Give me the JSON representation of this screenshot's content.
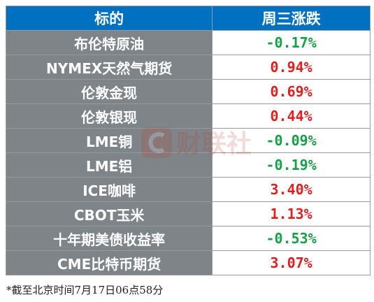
{
  "header": {
    "col_name": "标的",
    "col_change": "周三涨跌"
  },
  "rows": [
    {
      "name": "布伦特原油",
      "change": "-0.17%",
      "direction": "down"
    },
    {
      "name": "NYMEX天然气期货",
      "change": "0.94%",
      "direction": "up"
    },
    {
      "name": "伦敦金现",
      "change": "0.69%",
      "direction": "up"
    },
    {
      "name": "伦敦银现",
      "change": "0.44%",
      "direction": "up"
    },
    {
      "name": "LME铜",
      "change": "-0.09%",
      "direction": "down"
    },
    {
      "name": "LME铝",
      "change": "-0.19%",
      "direction": "down"
    },
    {
      "name": "ICE咖啡",
      "change": "3.40%",
      "direction": "up"
    },
    {
      "name": "CBOT玉米",
      "change": "1.13%",
      "direction": "up"
    },
    {
      "name": "十年期美债收益率",
      "change": "-0.53%",
      "direction": "down"
    },
    {
      "name": "CME比特币期货",
      "change": "3.07%",
      "direction": "up"
    }
  ],
  "footnote": "*截至北京时间7月17日06点58分",
  "colors": {
    "header_bg": "#0070c0",
    "name_cell_bg": "#7f8489",
    "up": "#e02020",
    "down": "#18a048"
  },
  "watermark": {
    "icon": "cls-logo-icon",
    "text": "财联社"
  }
}
